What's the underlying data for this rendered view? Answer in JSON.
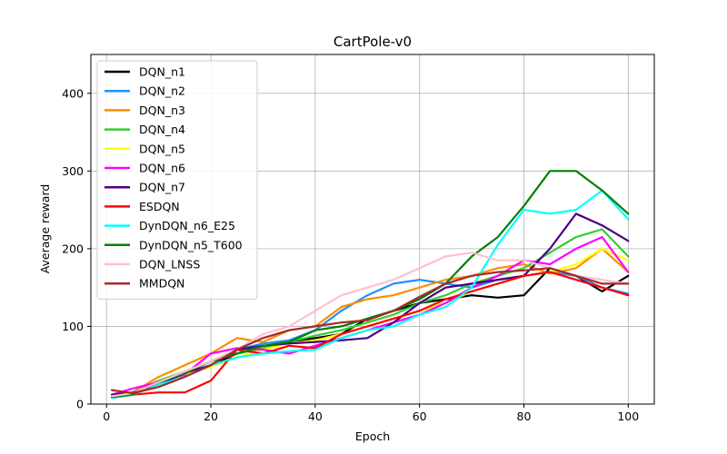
{
  "chart_data": {
    "type": "line",
    "title": "CartPole-v0",
    "xlabel": "Epoch",
    "ylabel": "Average reward",
    "xlim": [
      -3,
      105
    ],
    "ylim": [
      0,
      450
    ],
    "xticks": [
      0,
      20,
      40,
      60,
      80,
      100
    ],
    "yticks": [
      0,
      100,
      200,
      300,
      400
    ],
    "grid": true,
    "legend_position": "top-left",
    "x": [
      1,
      5,
      10,
      15,
      20,
      25,
      30,
      35,
      40,
      45,
      50,
      55,
      60,
      65,
      70,
      75,
      80,
      85,
      90,
      95,
      100
    ],
    "series": [
      {
        "name": "DQN_n1",
        "color": "#000000",
        "values": [
          10,
          13,
          25,
          38,
          50,
          65,
          72,
          80,
          85,
          90,
          110,
          120,
          130,
          135,
          140,
          137,
          140,
          175,
          165,
          145,
          165
        ]
      },
      {
        "name": "DQN_n2",
        "color": "#1e90ff",
        "values": [
          8,
          12,
          28,
          40,
          55,
          70,
          78,
          82,
          95,
          120,
          140,
          155,
          160,
          155,
          150,
          160,
          165,
          170,
          165,
          150,
          142
        ]
      },
      {
        "name": "DQN_n3",
        "color": "#ff8c00",
        "values": [
          10,
          15,
          35,
          50,
          65,
          85,
          80,
          95,
          100,
          125,
          135,
          140,
          150,
          160,
          165,
          175,
          180,
          168,
          175,
          200,
          170
        ]
      },
      {
        "name": "DQN_n4",
        "color": "#32cd32",
        "values": [
          10,
          14,
          30,
          42,
          55,
          65,
          72,
          80,
          88,
          95,
          105,
          115,
          130,
          140,
          155,
          165,
          175,
          195,
          215,
          225,
          190
        ]
      },
      {
        "name": "DQN_n5",
        "color": "#ffff00",
        "values": [
          10,
          13,
          26,
          38,
          48,
          60,
          70,
          78,
          82,
          90,
          100,
          110,
          120,
          130,
          145,
          155,
          165,
          170,
          180,
          200,
          185
        ]
      },
      {
        "name": "DQN_n6",
        "color": "#ff00ff",
        "values": [
          12,
          20,
          28,
          38,
          65,
          72,
          70,
          65,
          75,
          85,
          95,
          105,
          115,
          130,
          150,
          165,
          185,
          180,
          200,
          215,
          170
        ]
      },
      {
        "name": "DQN_n7",
        "color": "#4b0082",
        "values": [
          12,
          15,
          25,
          40,
          50,
          70,
          75,
          78,
          80,
          82,
          85,
          105,
          130,
          150,
          155,
          160,
          165,
          200,
          245,
          230,
          210
        ]
      },
      {
        "name": "ESDQN",
        "color": "#ff0000",
        "values": [
          9,
          12,
          15,
          15,
          30,
          70,
          65,
          75,
          72,
          90,
          100,
          110,
          120,
          135,
          145,
          155,
          165,
          170,
          160,
          150,
          140
        ]
      },
      {
        "name": "DynDQN_n6_E25",
        "color": "#00ffff",
        "values": [
          8,
          12,
          25,
          35,
          50,
          60,
          65,
          68,
          70,
          85,
          95,
          100,
          115,
          125,
          150,
          205,
          250,
          245,
          250,
          275,
          238
        ]
      },
      {
        "name": "DynDQN_n5_T600",
        "color": "#008000",
        "values": [
          9,
          12,
          28,
          40,
          55,
          65,
          75,
          80,
          95,
          100,
          110,
          120,
          135,
          155,
          190,
          215,
          255,
          300,
          300,
          275,
          245
        ]
      },
      {
        "name": "DQN_LNSS",
        "color": "#ffc0cb",
        "values": [
          10,
          14,
          28,
          42,
          55,
          70,
          90,
          100,
          120,
          140,
          150,
          160,
          175,
          190,
          195,
          185,
          185,
          175,
          165,
          160,
          155
        ]
      },
      {
        "name": "MMDQN",
        "color": "#a52a2a",
        "values": [
          18,
          14,
          22,
          35,
          50,
          70,
          85,
          95,
          100,
          105,
          108,
          120,
          138,
          155,
          165,
          170,
          172,
          175,
          165,
          155,
          155
        ]
      }
    ]
  }
}
